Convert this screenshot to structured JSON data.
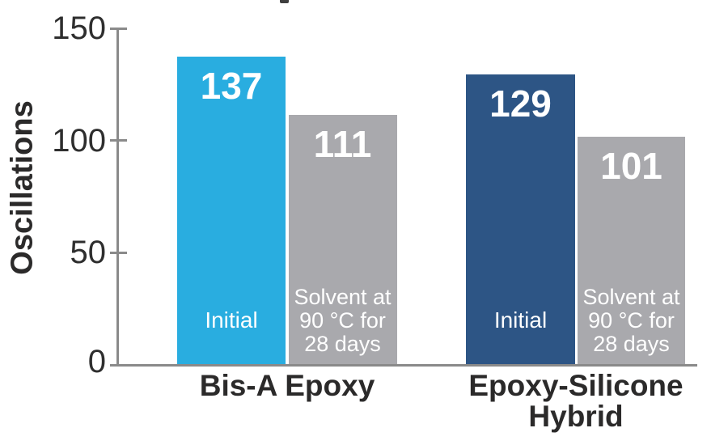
{
  "accent_colors": {
    "cyan": "#29ade0",
    "navy": "#2d5585",
    "gray": "#a9a9ad",
    "axis_gray": "#8a8a8a",
    "text_dark": "#2b2a2a",
    "text_white": "#ffffff"
  },
  "chart_data": {
    "type": "bar",
    "title": "",
    "ylabel": "Oscillations",
    "xlabel": "",
    "ylim": [
      0,
      150
    ],
    "yticks": [
      {
        "value": 150,
        "label": "150"
      },
      {
        "value": 100,
        "label": "100"
      },
      {
        "value": 50,
        "label": "50"
      },
      {
        "value": 0,
        "label": "0"
      }
    ],
    "grid": false,
    "legend": "none (labels inside bars)",
    "categories": [
      "Bis-A Epoxy",
      "Epoxy-Silicone Hybrid"
    ],
    "groups": [
      {
        "category": "Bis-A Epoxy",
        "bars": [
          {
            "label": "Initial",
            "value": 137,
            "color": "#29ade0"
          },
          {
            "label": "Solvent at 90 °C for 28 days",
            "label_lines": [
              "Solvent at",
              "90 °C for",
              "28 days"
            ],
            "value": 111,
            "color": "#a9a9ad"
          }
        ]
      },
      {
        "category": "Epoxy-Silicone Hybrid",
        "bars": [
          {
            "label": "Initial",
            "value": 129,
            "color": "#2d5585"
          },
          {
            "label": "Solvent at 90 °C for 28 days",
            "label_lines": [
              "Solvent at",
              "90 °C for",
              "28 days"
            ],
            "value": 101,
            "color": "#a9a9ad"
          }
        ]
      }
    ]
  }
}
